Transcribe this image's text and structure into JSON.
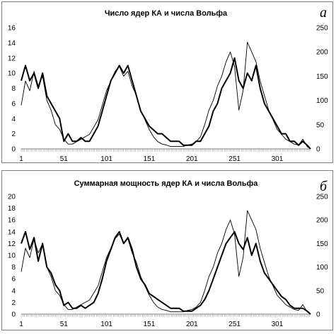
{
  "chart_data": [
    {
      "type": "line",
      "panel_letter": "а",
      "title": "Число ядер КА и числа Вольфа",
      "xlabel": "",
      "ylabel": "",
      "xlim": [
        1,
        340
      ],
      "ylim": [
        0,
        16
      ],
      "y2lim": [
        0,
        250
      ],
      "x_ticks": [
        1,
        51,
        101,
        151,
        201,
        251,
        301
      ],
      "y_ticks": [
        0,
        2,
        4,
        6,
        8,
        10,
        12,
        14,
        16
      ],
      "y2_ticks": [
        0,
        50,
        100,
        150,
        200,
        250
      ],
      "grid": false,
      "series": [
        {
          "axis": "left",
          "style": "thick",
          "x": [
            1,
            6,
            11,
            16,
            21,
            26,
            31,
            36,
            41,
            46,
            51,
            56,
            61,
            66,
            71,
            76,
            81,
            86,
            91,
            96,
            101,
            106,
            111,
            116,
            121,
            126,
            131,
            136,
            141,
            146,
            151,
            156,
            161,
            166,
            171,
            176,
            181,
            186,
            191,
            196,
            201,
            206,
            211,
            216,
            221,
            226,
            231,
            236,
            241,
            246,
            251,
            256,
            261,
            266,
            271,
            276,
            281,
            286,
            291,
            296,
            301,
            306,
            311,
            316,
            321,
            326,
            331,
            336,
            340
          ],
          "y": [
            9,
            11,
            9,
            10,
            8,
            10,
            7,
            6,
            5,
            4,
            1,
            2,
            1,
            1,
            1.5,
            1,
            1,
            2,
            3,
            5,
            7,
            9,
            10,
            11,
            10,
            11,
            9,
            7,
            5,
            4,
            3,
            2.5,
            2,
            2,
            1.5,
            1,
            1,
            1,
            0.5,
            0.5,
            0.5,
            1,
            1,
            2,
            3,
            5,
            6,
            8,
            9,
            10,
            12,
            9,
            8,
            10,
            9,
            11,
            8,
            6,
            5,
            4,
            3,
            2,
            2,
            1,
            1,
            0.5,
            1,
            0.5,
            0
          ]
        },
        {
          "axis": "right",
          "style": "thin",
          "x": [
            1,
            6,
            11,
            16,
            21,
            26,
            31,
            36,
            41,
            46,
            51,
            56,
            61,
            66,
            71,
            76,
            81,
            86,
            91,
            96,
            101,
            106,
            111,
            116,
            121,
            126,
            131,
            136,
            141,
            146,
            151,
            156,
            161,
            166,
            171,
            176,
            181,
            186,
            191,
            196,
            201,
            206,
            211,
            216,
            221,
            226,
            231,
            236,
            241,
            246,
            251,
            256,
            261,
            266,
            271,
            276,
            281,
            286,
            291,
            296,
            301,
            306,
            311,
            316,
            321,
            326,
            331,
            336,
            340
          ],
          "y": [
            90,
            140,
            120,
            160,
            130,
            150,
            100,
            80,
            50,
            40,
            20,
            10,
            10,
            15,
            20,
            25,
            30,
            45,
            60,
            90,
            120,
            140,
            160,
            170,
            150,
            160,
            130,
            110,
            80,
            60,
            40,
            25,
            15,
            10,
            8,
            5,
            5,
            5,
            5,
            8,
            10,
            15,
            25,
            50,
            80,
            100,
            130,
            150,
            180,
            200,
            170,
            80,
            120,
            220,
            200,
            180,
            140,
            110,
            80,
            60,
            40,
            30,
            20,
            15,
            10,
            8,
            20,
            5,
            0
          ]
        }
      ]
    },
    {
      "type": "line",
      "panel_letter": "б",
      "title": "Суммарная мощность ядер КА и числа Вольфа",
      "xlabel": "",
      "ylabel": "",
      "xlim": [
        1,
        340
      ],
      "ylim": [
        0,
        20
      ],
      "y2lim": [
        0,
        250
      ],
      "x_ticks": [
        1,
        51,
        101,
        151,
        201,
        251,
        301
      ],
      "y_ticks": [
        0,
        2,
        4,
        6,
        8,
        10,
        12,
        14,
        16,
        18,
        20
      ],
      "y2_ticks": [
        0,
        50,
        100,
        150,
        200,
        250
      ],
      "grid": false,
      "series": [
        {
          "axis": "left",
          "style": "thick",
          "x": [
            1,
            6,
            11,
            16,
            21,
            26,
            31,
            36,
            41,
            46,
            51,
            56,
            61,
            66,
            71,
            76,
            81,
            86,
            91,
            96,
            101,
            106,
            111,
            116,
            121,
            126,
            131,
            136,
            141,
            146,
            151,
            156,
            161,
            166,
            171,
            176,
            181,
            186,
            191,
            196,
            201,
            206,
            211,
            216,
            221,
            226,
            231,
            236,
            241,
            246,
            251,
            256,
            261,
            266,
            271,
            276,
            281,
            286,
            291,
            296,
            301,
            306,
            311,
            316,
            321,
            326,
            331,
            336,
            340
          ],
          "y": [
            12,
            14,
            11,
            13,
            9,
            12,
            8,
            7,
            5,
            4,
            1.5,
            2,
            1,
            1,
            1.5,
            1,
            1.5,
            2,
            3.5,
            6,
            9,
            11,
            13,
            14,
            12,
            13,
            11,
            8,
            6,
            5,
            3.5,
            3,
            2.5,
            2,
            1.5,
            1,
            1,
            1,
            0.5,
            0.5,
            0.5,
            1,
            1.5,
            2.5,
            4,
            6,
            8,
            10,
            12,
            13,
            14,
            12,
            11,
            13,
            10,
            12,
            9,
            7,
            6,
            5,
            4,
            3,
            2.5,
            1.5,
            1,
            1,
            1,
            0.5,
            0
          ]
        },
        {
          "axis": "right",
          "style": "thin",
          "x": [
            1,
            6,
            11,
            16,
            21,
            26,
            31,
            36,
            41,
            46,
            51,
            56,
            61,
            66,
            71,
            76,
            81,
            86,
            91,
            96,
            101,
            106,
            111,
            116,
            121,
            126,
            131,
            136,
            141,
            146,
            151,
            156,
            161,
            166,
            171,
            176,
            181,
            186,
            191,
            196,
            201,
            206,
            211,
            216,
            221,
            226,
            231,
            236,
            241,
            246,
            251,
            256,
            261,
            266,
            271,
            276,
            281,
            286,
            291,
            296,
            301,
            306,
            311,
            316,
            321,
            326,
            331,
            336,
            340
          ],
          "y": [
            90,
            140,
            120,
            160,
            130,
            150,
            100,
            80,
            50,
            40,
            20,
            10,
            10,
            15,
            20,
            25,
            30,
            45,
            60,
            90,
            120,
            140,
            160,
            170,
            150,
            160,
            130,
            110,
            80,
            60,
            40,
            25,
            15,
            10,
            8,
            5,
            5,
            5,
            5,
            8,
            10,
            15,
            25,
            50,
            80,
            100,
            130,
            150,
            180,
            200,
            170,
            80,
            120,
            220,
            200,
            180,
            140,
            110,
            80,
            60,
            40,
            30,
            20,
            15,
            10,
            8,
            20,
            5,
            0
          ]
        }
      ]
    }
  ]
}
